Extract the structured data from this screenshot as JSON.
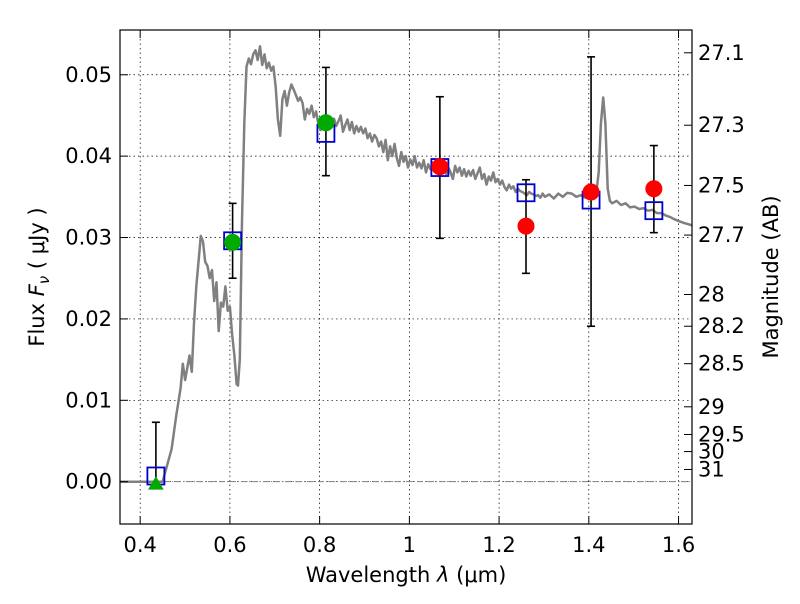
{
  "chart_data": {
    "type": "scatter",
    "xlabel_prefix": "Wavelength ",
    "xlabel_var": "λ",
    "xlabel_unit": "(μm)",
    "ylabel_prefix": "Flux ",
    "ylabel_var": "F",
    "ylabel_sub": "ν",
    "ylabel_unit": "( μJy )",
    "y2label": "Magnitude (AB)",
    "xlim": [
      0.355,
      1.63
    ],
    "ylim": [
      -0.0052,
      0.0555
    ],
    "grid": true,
    "x_ticks": [
      {
        "value": 0.4,
        "label": "0.4"
      },
      {
        "value": 0.6,
        "label": "0.6"
      },
      {
        "value": 0.8,
        "label": "0.8"
      },
      {
        "value": 1.0,
        "label": "1"
      },
      {
        "value": 1.2,
        "label": "1.2"
      },
      {
        "value": 1.4,
        "label": "1.4"
      },
      {
        "value": 1.6,
        "label": "1.6"
      }
    ],
    "y_ticks": [
      {
        "value": 0.0,
        "label": "0.00"
      },
      {
        "value": 0.01,
        "label": "0.01"
      },
      {
        "value": 0.02,
        "label": "0.02"
      },
      {
        "value": 0.03,
        "label": "0.03"
      },
      {
        "value": 0.04,
        "label": "0.04"
      },
      {
        "value": 0.05,
        "label": "0.05"
      }
    ],
    "y2_ticks": [
      {
        "label": "27.1",
        "flux": 0.0527
      },
      {
        "label": "27.3",
        "flux": 0.0438
      },
      {
        "label": "27.5",
        "flux": 0.0364
      },
      {
        "label": "27.7",
        "flux": 0.0303
      },
      {
        "label": "28",
        "flux": 0.023
      },
      {
        "label": "28.2",
        "flux": 0.0191
      },
      {
        "label": "28.5",
        "flux": 0.0145
      },
      {
        "label": "29",
        "flux": 0.0092
      },
      {
        "label": "29.5",
        "flux": 0.0058
      },
      {
        "label": "30",
        "flux": 0.0037
      },
      {
        "label": "31",
        "flux": 0.0015
      }
    ],
    "colors": {
      "model": "#808080",
      "model_box": "#0000cc",
      "obs_optical": "#00aa00",
      "obs_nir": "#ff0000",
      "errorbar": "#000000",
      "zero_line": "#808080"
    },
    "model_curve": [
      [
        0.355,
        0.0
      ],
      [
        0.44,
        0.0
      ],
      [
        0.45,
        0.0
      ],
      [
        0.47,
        0.004
      ],
      [
        0.48,
        0.008
      ],
      [
        0.49,
        0.0115
      ],
      [
        0.495,
        0.0145
      ],
      [
        0.5,
        0.0125
      ],
      [
        0.505,
        0.014
      ],
      [
        0.51,
        0.0155
      ],
      [
        0.515,
        0.0135
      ],
      [
        0.52,
        0.0195
      ],
      [
        0.525,
        0.024
      ],
      [
        0.53,
        0.027
      ],
      [
        0.535,
        0.0302
      ],
      [
        0.54,
        0.0295
      ],
      [
        0.545,
        0.027
      ],
      [
        0.55,
        0.0265
      ],
      [
        0.555,
        0.025
      ],
      [
        0.56,
        0.026
      ],
      [
        0.565,
        0.0222
      ],
      [
        0.57,
        0.0245
      ],
      [
        0.575,
        0.0185
      ],
      [
        0.58,
        0.022
      ],
      [
        0.585,
        0.0215
      ],
      [
        0.59,
        0.024
      ],
      [
        0.595,
        0.021
      ],
      [
        0.6,
        0.0215
      ],
      [
        0.605,
        0.018
      ],
      [
        0.61,
        0.0155
      ],
      [
        0.615,
        0.012
      ],
      [
        0.618,
        0.0118
      ],
      [
        0.622,
        0.015
      ],
      [
        0.627,
        0.032
      ],
      [
        0.632,
        0.044
      ],
      [
        0.637,
        0.051
      ],
      [
        0.642,
        0.052
      ],
      [
        0.647,
        0.0513
      ],
      [
        0.652,
        0.0525
      ],
      [
        0.657,
        0.053
      ],
      [
        0.662,
        0.0518
      ],
      [
        0.667,
        0.0535
      ],
      [
        0.672,
        0.0512
      ],
      [
        0.677,
        0.0525
      ],
      [
        0.682,
        0.0508
      ],
      [
        0.687,
        0.0515
      ],
      [
        0.692,
        0.0505
      ],
      [
        0.697,
        0.051
      ],
      [
        0.702,
        0.0485
      ],
      [
        0.707,
        0.0445
      ],
      [
        0.712,
        0.0425
      ],
      [
        0.717,
        0.047
      ],
      [
        0.722,
        0.048
      ],
      [
        0.727,
        0.0462
      ],
      [
        0.732,
        0.0478
      ],
      [
        0.737,
        0.0488
      ],
      [
        0.742,
        0.0482
      ],
      [
        0.747,
        0.0475
      ],
      [
        0.752,
        0.0468
      ],
      [
        0.757,
        0.0472
      ],
      [
        0.762,
        0.0465
      ],
      [
        0.767,
        0.0445
      ],
      [
        0.772,
        0.0458
      ],
      [
        0.777,
        0.0452
      ],
      [
        0.782,
        0.0462
      ],
      [
        0.787,
        0.0448
      ],
      [
        0.792,
        0.0455
      ],
      [
        0.797,
        0.044
      ],
      [
        0.802,
        0.0432
      ],
      [
        0.807,
        0.0445
      ],
      [
        0.812,
        0.0445
      ],
      [
        0.817,
        0.0444
      ],
      [
        0.822,
        0.0442
      ],
      [
        0.827,
        0.044
      ],
      [
        0.832,
        0.0446
      ],
      [
        0.837,
        0.0437
      ],
      [
        0.842,
        0.0443
      ],
      [
        0.847,
        0.045
      ],
      [
        0.852,
        0.043
      ],
      [
        0.857,
        0.0438
      ],
      [
        0.862,
        0.0445
      ],
      [
        0.867,
        0.0432
      ],
      [
        0.872,
        0.0442
      ],
      [
        0.877,
        0.0428
      ],
      [
        0.882,
        0.0437
      ],
      [
        0.887,
        0.043
      ],
      [
        0.892,
        0.0436
      ],
      [
        0.897,
        0.0428
      ],
      [
        0.902,
        0.0434
      ],
      [
        0.907,
        0.0422
      ],
      [
        0.912,
        0.0428
      ],
      [
        0.917,
        0.0418
      ],
      [
        0.922,
        0.0426
      ],
      [
        0.927,
        0.0422
      ],
      [
        0.932,
        0.0412
      ],
      [
        0.937,
        0.0418
      ],
      [
        0.942,
        0.0405
      ],
      [
        0.947,
        0.042
      ],
      [
        0.952,
        0.0395
      ],
      [
        0.957,
        0.0412
      ],
      [
        0.962,
        0.04
      ],
      [
        0.967,
        0.0415
      ],
      [
        0.972,
        0.0398
      ],
      [
        0.977,
        0.0388
      ],
      [
        0.982,
        0.0405
      ],
      [
        0.987,
        0.0393
      ],
      [
        0.992,
        0.04
      ],
      [
        0.997,
        0.0386
      ],
      [
        1.002,
        0.0396
      ],
      [
        1.007,
        0.0389
      ],
      [
        1.012,
        0.04
      ],
      [
        1.017,
        0.0386
      ],
      [
        1.022,
        0.0392
      ],
      [
        1.027,
        0.0385
      ],
      [
        1.032,
        0.0395
      ],
      [
        1.037,
        0.038
      ],
      [
        1.042,
        0.039
      ],
      [
        1.047,
        0.0384
      ],
      [
        1.052,
        0.0392
      ],
      [
        1.057,
        0.0388
      ],
      [
        1.062,
        0.0388
      ],
      [
        1.067,
        0.0388
      ],
      [
        1.072,
        0.038
      ],
      [
        1.077,
        0.0392
      ],
      [
        1.082,
        0.0378
      ],
      [
        1.087,
        0.0386
      ],
      [
        1.092,
        0.038
      ],
      [
        1.097,
        0.0372
      ],
      [
        1.102,
        0.0388
      ],
      [
        1.107,
        0.038
      ],
      [
        1.112,
        0.0386
      ],
      [
        1.117,
        0.0376
      ],
      [
        1.122,
        0.0384
      ],
      [
        1.127,
        0.0375
      ],
      [
        1.132,
        0.0382
      ],
      [
        1.137,
        0.0376
      ],
      [
        1.142,
        0.0383
      ],
      [
        1.147,
        0.0372
      ],
      [
        1.152,
        0.0379
      ],
      [
        1.157,
        0.0386
      ],
      [
        1.162,
        0.0372
      ],
      [
        1.167,
        0.0378
      ],
      [
        1.172,
        0.0365
      ],
      [
        1.177,
        0.0375
      ],
      [
        1.182,
        0.037
      ],
      [
        1.187,
        0.038
      ],
      [
        1.192,
        0.0368
      ],
      [
        1.197,
        0.0372
      ],
      [
        1.202,
        0.0365
      ],
      [
        1.207,
        0.037
      ],
      [
        1.212,
        0.0362
      ],
      [
        1.217,
        0.0358
      ],
      [
        1.222,
        0.0365
      ],
      [
        1.227,
        0.036
      ],
      [
        1.232,
        0.0363
      ],
      [
        1.237,
        0.0356
      ],
      [
        1.242,
        0.036
      ],
      [
        1.247,
        0.0357
      ],
      [
        1.252,
        0.0356
      ],
      [
        1.257,
        0.0354
      ],
      [
        1.262,
        0.0352
      ],
      [
        1.267,
        0.0356
      ],
      [
        1.272,
        0.0354
      ],
      [
        1.277,
        0.0353
      ],
      [
        1.282,
        0.0351
      ],
      [
        1.287,
        0.0352
      ],
      [
        1.292,
        0.0349
      ],
      [
        1.297,
        0.0354
      ],
      [
        1.302,
        0.035
      ],
      [
        1.312,
        0.0353
      ],
      [
        1.322,
        0.0348
      ],
      [
        1.332,
        0.0354
      ],
      [
        1.342,
        0.035
      ],
      [
        1.352,
        0.0355
      ],
      [
        1.362,
        0.0354
      ],
      [
        1.372,
        0.035
      ],
      [
        1.382,
        0.0352
      ],
      [
        1.392,
        0.0349
      ],
      [
        1.402,
        0.035
      ],
      [
        1.412,
        0.0348
      ],
      [
        1.417,
        0.0356
      ],
      [
        1.422,
        0.038
      ],
      [
        1.427,
        0.044
      ],
      [
        1.432,
        0.0472
      ],
      [
        1.437,
        0.044
      ],
      [
        1.442,
        0.036
      ],
      [
        1.447,
        0.0345
      ],
      [
        1.452,
        0.0342
      ],
      [
        1.462,
        0.0345
      ],
      [
        1.472,
        0.034
      ],
      [
        1.482,
        0.0342
      ],
      [
        1.492,
        0.0337
      ],
      [
        1.502,
        0.0338
      ],
      [
        1.512,
        0.0335
      ],
      [
        1.522,
        0.0336
      ],
      [
        1.532,
        0.0333
      ],
      [
        1.542,
        0.0334
      ],
      [
        1.552,
        0.033
      ],
      [
        1.562,
        0.033
      ],
      [
        1.572,
        0.0327
      ],
      [
        1.582,
        0.0325
      ],
      [
        1.592,
        0.0322
      ],
      [
        1.602,
        0.032
      ],
      [
        1.612,
        0.0318
      ],
      [
        1.63,
        0.0315
      ]
    ],
    "model_boxes": [
      {
        "x": 0.435,
        "y": 0.0007
      },
      {
        "x": 0.606,
        "y": 0.0296
      },
      {
        "x": 0.814,
        "y": 0.0428
      },
      {
        "x": 1.068,
        "y": 0.0386
      },
      {
        "x": 1.26,
        "y": 0.0355
      },
      {
        "x": 1.405,
        "y": 0.0346
      },
      {
        "x": 1.545,
        "y": 0.0333
      }
    ],
    "observations": [
      {
        "x": 0.435,
        "y": -0.0003,
        "marker": "triangle",
        "color_key": "obs_optical",
        "err_low": null,
        "err_high": 0.0073
      },
      {
        "x": 0.606,
        "y": 0.0294,
        "marker": "circle",
        "color_key": "obs_optical",
        "err_low": 0.025,
        "err_high": 0.0342
      },
      {
        "x": 0.814,
        "y": 0.0441,
        "marker": "circle",
        "color_key": "obs_optical",
        "err_low": 0.0376,
        "err_high": 0.0509
      },
      {
        "x": 1.068,
        "y": 0.0387,
        "marker": "circle",
        "color_key": "obs_nir",
        "err_low": 0.0299,
        "err_high": 0.0473
      },
      {
        "x": 1.26,
        "y": 0.0314,
        "marker": "circle",
        "color_key": "obs_nir",
        "err_low": 0.0256,
        "err_high": 0.0371
      },
      {
        "x": 1.405,
        "y": 0.0356,
        "marker": "circle",
        "color_key": "obs_nir",
        "err_low": 0.0191,
        "err_high": 0.0522
      },
      {
        "x": 1.545,
        "y": 0.036,
        "marker": "circle",
        "color_key": "obs_nir",
        "err_low": 0.0306,
        "err_high": 0.0413
      }
    ]
  }
}
